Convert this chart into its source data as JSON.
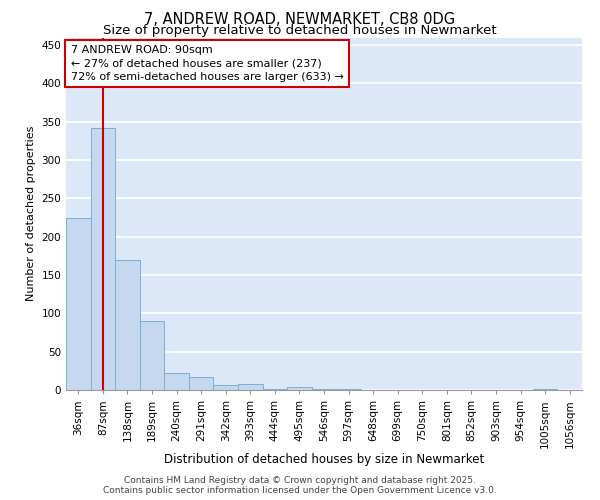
{
  "title_line1": "7, ANDREW ROAD, NEWMARKET, CB8 0DG",
  "title_line2": "Size of property relative to detached houses in Newmarket",
  "xlabel": "Distribution of detached houses by size in Newmarket",
  "ylabel": "Number of detached properties",
  "categories": [
    "36sqm",
    "87sqm",
    "138sqm",
    "189sqm",
    "240sqm",
    "291sqm",
    "342sqm",
    "393sqm",
    "444sqm",
    "495sqm",
    "546sqm",
    "597sqm",
    "648sqm",
    "699sqm",
    "750sqm",
    "801sqm",
    "852sqm",
    "903sqm",
    "954sqm",
    "1005sqm",
    "1056sqm"
  ],
  "values": [
    225,
    342,
    170,
    90,
    22,
    17,
    7,
    8,
    1,
    4,
    1,
    1,
    0,
    0,
    0,
    0,
    0,
    0,
    0,
    1,
    0
  ],
  "bar_color": "#c5d8f0",
  "bar_edge_color": "#7aafd4",
  "vline_x_index": 1,
  "vline_color": "#cc0000",
  "annotation_text": "7 ANDREW ROAD: 90sqm\n← 27% of detached houses are smaller (237)\n72% of semi-detached houses are larger (633) →",
  "annotation_fontsize": 8,
  "annotation_box_color": "white",
  "annotation_box_edge": "#cc0000",
  "ylim": [
    0,
    460
  ],
  "yticks": [
    0,
    50,
    100,
    150,
    200,
    250,
    300,
    350,
    400,
    450
  ],
  "bg_color": "#dce8f8",
  "grid_color": "white",
  "footer_text": "Contains HM Land Registry data © Crown copyright and database right 2025.\nContains public sector information licensed under the Open Government Licence v3.0.",
  "title_fontsize": 10.5,
  "subtitle_fontsize": 9.5,
  "xlabel_fontsize": 8.5,
  "ylabel_fontsize": 8,
  "tick_fontsize": 7.5,
  "footer_fontsize": 6.5
}
